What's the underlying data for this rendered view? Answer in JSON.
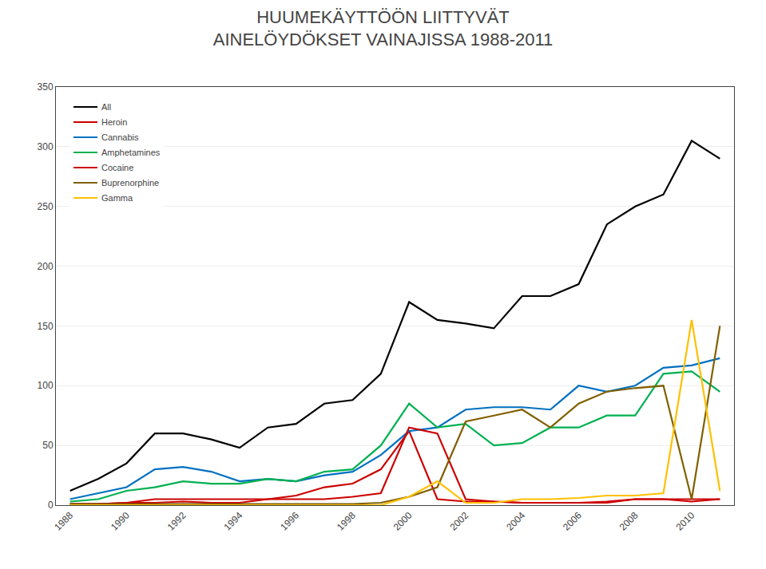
{
  "chart_data": {
    "type": "line",
    "title": "HUUMEKÄYTTÖÖN LIITTYVÄT\nAINELÖYDÖKSET VAINAJISSA 1988-2011",
    "x": [
      1988,
      1989,
      1990,
      1991,
      1992,
      1993,
      1994,
      1995,
      1996,
      1997,
      1998,
      1999,
      2000,
      2001,
      2002,
      2003,
      2004,
      2005,
      2006,
      2007,
      2008,
      2009,
      2010,
      2011
    ],
    "series": [
      {
        "name": "All",
        "color": "#000000",
        "values": [
          12,
          22,
          35,
          60,
          60,
          55,
          48,
          65,
          68,
          85,
          88,
          110,
          170,
          155,
          152,
          148,
          175,
          175,
          185,
          235,
          250,
          260,
          305,
          290
        ]
      },
      {
        "name": "Heroin",
        "color": "#cc0000",
        "values": [
          1,
          1,
          2,
          2,
          3,
          2,
          2,
          5,
          8,
          15,
          18,
          30,
          62,
          5,
          3,
          3,
          2,
          2,
          2,
          3,
          5,
          5,
          3,
          5
        ]
      },
      {
        "name": "Cannabis",
        "color": "#0070c0",
        "values": [
          5,
          10,
          15,
          30,
          32,
          28,
          20,
          22,
          20,
          25,
          28,
          42,
          62,
          65,
          80,
          82,
          82,
          80,
          100,
          95,
          100,
          115,
          117,
          123
        ]
      },
      {
        "name": "Amphetamines",
        "color": "#00b050",
        "values": [
          3,
          5,
          12,
          15,
          20,
          18,
          18,
          22,
          20,
          28,
          30,
          50,
          85,
          65,
          68,
          50,
          52,
          65,
          65,
          75,
          75,
          110,
          112,
          95
        ]
      },
      {
        "name": "Cocaine",
        "color": "#cc0000",
        "values": [
          1,
          1,
          2,
          5,
          5,
          5,
          5,
          5,
          5,
          5,
          7,
          10,
          65,
          60,
          5,
          3,
          2,
          2,
          2,
          2,
          5,
          5,
          5,
          5
        ]
      },
      {
        "name": "Buprenorphine",
        "color": "#806000",
        "values": [
          1,
          1,
          1,
          1,
          1,
          1,
          1,
          1,
          1,
          1,
          1,
          2,
          7,
          15,
          70,
          75,
          80,
          65,
          85,
          95,
          98,
          100,
          5,
          150
        ]
      },
      {
        "name": "Gamma",
        "color": "#ffc000",
        "values": [
          0,
          0,
          0,
          0,
          0,
          0,
          0,
          0,
          0,
          0,
          0,
          0,
          7,
          20,
          2,
          2,
          5,
          5,
          6,
          8,
          8,
          10,
          155,
          12
        ]
      }
    ],
    "xlim": [
      1987.5,
      2011.5
    ],
    "xticks": [
      1988,
      1990,
      1992,
      1994,
      1996,
      1998,
      2000,
      2002,
      2004,
      2006,
      2008,
      2010
    ],
    "ylim": [
      0,
      350
    ],
    "yticks": [
      0,
      50,
      100,
      150,
      200,
      250,
      300,
      350
    ],
    "grid": true,
    "legend": "upper left"
  }
}
